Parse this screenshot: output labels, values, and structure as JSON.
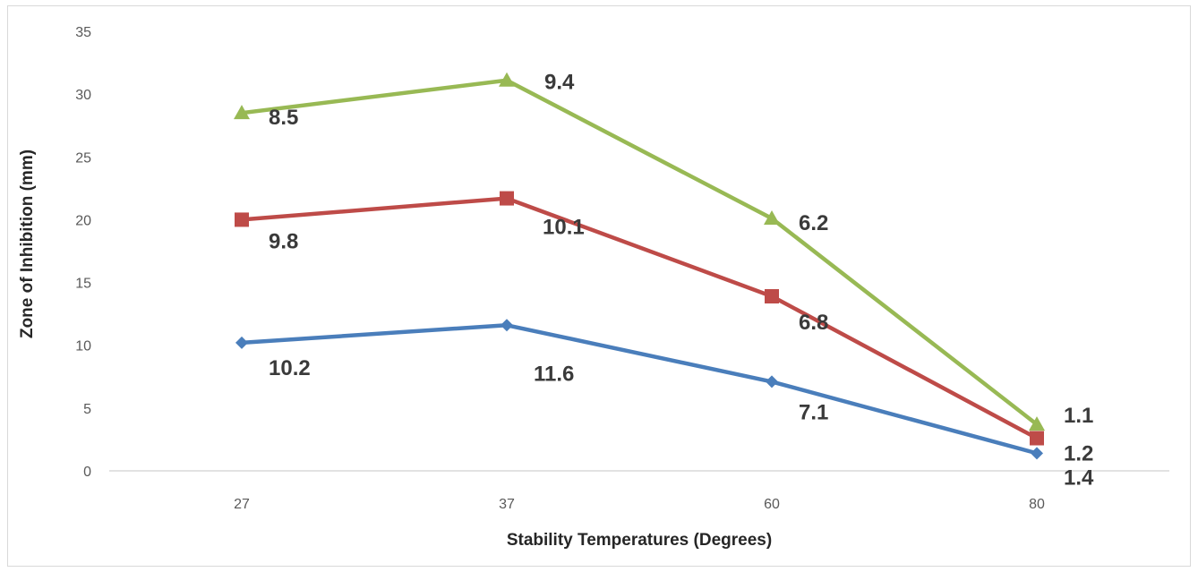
{
  "chart_data": {
    "type": "line",
    "categories": [
      "27",
      "37",
      "60",
      "80"
    ],
    "xlabel": "Stability Temperatures (Degrees)",
    "ylabel": "Zone of Inhibition (mm)",
    "ylim": [
      0,
      35
    ],
    "yticks": [
      "0",
      "5",
      "10",
      "15",
      "20",
      "25",
      "30",
      "35"
    ],
    "grid": false,
    "legend": "none",
    "stacked": true,
    "series": [
      {
        "color": "#4a7ebb",
        "marker": "diamond",
        "values": [
          10.2,
          11.6,
          7.1,
          1.4
        ],
        "labels": [
          "10.2",
          "11.6",
          "7.1",
          "1.4"
        ]
      },
      {
        "color": "#be4b48",
        "marker": "square",
        "values": [
          9.8,
          10.1,
          6.8,
          1.2
        ],
        "labels": [
          "9.8",
          "10.1",
          "6.8",
          "1.2"
        ]
      },
      {
        "color": "#98b954",
        "marker": "triangle",
        "values": [
          8.5,
          9.4,
          6.2,
          1.1
        ],
        "labels": [
          "8.5",
          "9.4",
          "6.2",
          "1.1"
        ]
      }
    ]
  }
}
